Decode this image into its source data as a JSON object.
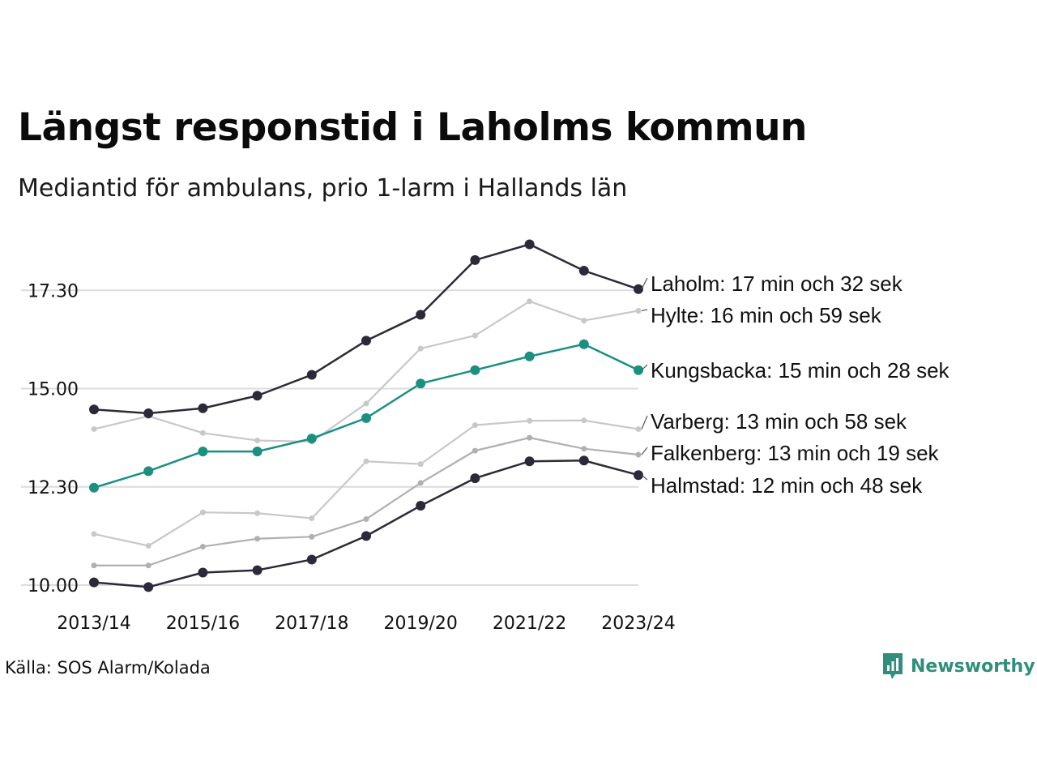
{
  "header": {
    "title": "Längst responstid i Laholms kommun",
    "subtitle": "Mediantid för ambulans, prio 1-larm i Hallands län"
  },
  "footer": {
    "source": "Källa: SOS Alarm/Kolada",
    "brand": "Newsworthy"
  },
  "colors": {
    "dark": "#2b2a3a",
    "accent": "#1a9080",
    "light": "#c8c8c8",
    "mid": "#b0b0b0",
    "grid": "#dcdcdc",
    "brand": "#2f8f7b"
  },
  "chart_data": {
    "type": "line",
    "x": [
      "2013/14",
      "2014/15",
      "2015/16",
      "2016/17",
      "2017/18",
      "2018/19",
      "2019/20",
      "2020/21",
      "2021/22",
      "2022/23",
      "2023/24"
    ],
    "x_tick_labels": [
      "2013/14",
      "2015/16",
      "2017/18",
      "2019/20",
      "2021/22",
      "2023/24"
    ],
    "y_ticks": [
      10.0,
      12.5,
      15.0,
      17.5
    ],
    "y_tick_labels": [
      "10.00",
      "12.30",
      "15.00",
      "17.30"
    ],
    "y_unit": "minutes",
    "ylim": [
      9.9,
      18.9
    ],
    "grid": "horizontal",
    "series": [
      {
        "name": "Halmstad",
        "label": "Halmstad: 12 min och 48 sek",
        "style": "dark",
        "values": [
          10.07,
          9.95,
          10.32,
          10.38,
          10.65,
          11.25,
          12.02,
          12.72,
          13.15,
          13.17,
          12.8
        ]
      },
      {
        "name": "Falkenberg",
        "label": "Falkenberg: 13 min och 19 sek",
        "style": "mid",
        "values": [
          10.5,
          10.5,
          10.98,
          11.18,
          11.23,
          11.68,
          12.6,
          13.42,
          13.75,
          13.47,
          13.32
        ]
      },
      {
        "name": "Varberg",
        "label": "Varberg: 13 min och 58 sek",
        "style": "light",
        "values": [
          11.3,
          11.0,
          11.85,
          11.83,
          11.7,
          13.15,
          13.08,
          14.07,
          14.18,
          14.19,
          13.97
        ]
      },
      {
        "name": "Hylte",
        "label": "Hylte: 16 min och 59 sek",
        "style": "light",
        "values": [
          13.97,
          14.3,
          13.87,
          13.68,
          13.65,
          14.62,
          16.02,
          16.35,
          17.22,
          16.73,
          16.98
        ]
      },
      {
        "name": "Kungsbacka",
        "label": "Kungsbacka: 15 min och 28 sek",
        "style": "accent",
        "values": [
          12.48,
          12.9,
          13.4,
          13.4,
          13.73,
          14.25,
          15.13,
          15.47,
          15.82,
          16.13,
          15.47
        ]
      },
      {
        "name": "Laholm",
        "label": "Laholm: 17 min och 32 sek",
        "style": "dark",
        "values": [
          14.47,
          14.37,
          14.5,
          14.82,
          15.35,
          16.22,
          16.88,
          18.27,
          18.67,
          18.0,
          17.53
        ]
      }
    ]
  }
}
